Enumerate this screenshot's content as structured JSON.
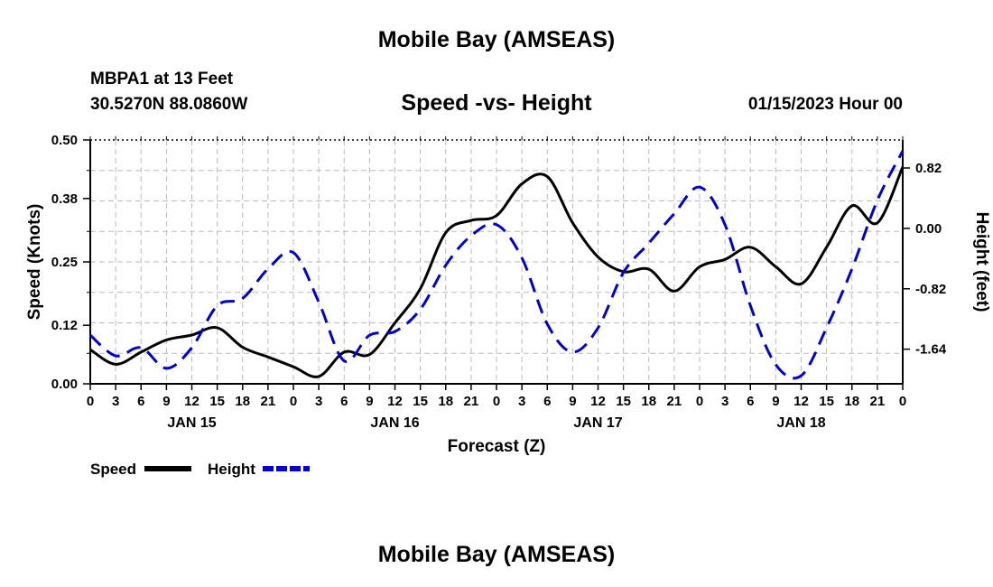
{
  "titles": {
    "main": "Mobile Bay (AMSEAS)",
    "station": "MBPA1 at 13 Feet",
    "coords": "30.5270N  88.0860W",
    "subtitle": "Speed -vs- Height",
    "datetime": "01/15/2023 Hour 00",
    "bottom": "Mobile Bay (AMSEAS)"
  },
  "chart_data": {
    "type": "line",
    "title": "Speed -vs- Height",
    "xlabel": "Forecast (Z)",
    "ylabel": "Speed (Knots)",
    "y2label": "Height (feet)",
    "x_hours_range": [
      0,
      96
    ],
    "ylim": [
      0,
      0.5
    ],
    "y2lim": [
      -2.11,
      1.2
    ],
    "y_ticks": [
      "0.00",
      "0.12",
      "0.25",
      "0.38",
      "0.50"
    ],
    "y2_ticks": [
      "-1.64",
      "-0.82",
      "0.00",
      "0.82"
    ],
    "x_tick_labels": [
      "0",
      "3",
      "6",
      "9",
      "12",
      "15",
      "18",
      "21",
      "0",
      "3",
      "6",
      "9",
      "12",
      "15",
      "18",
      "21",
      "0",
      "3",
      "6",
      "9",
      "12",
      "15",
      "18",
      "21",
      "0",
      "3",
      "6",
      "9",
      "12",
      "15",
      "18",
      "21",
      "0"
    ],
    "day_labels": [
      "JAN 15",
      "JAN 16",
      "JAN 17",
      "JAN 18"
    ],
    "legend": [
      {
        "name": "Speed",
        "color": "#000000",
        "dash": false
      },
      {
        "name": "Height",
        "color": "#0000cc",
        "dash": true
      }
    ],
    "series": [
      {
        "name": "Speed",
        "axis": "left",
        "color": "#000000",
        "x": [
          0,
          3,
          6,
          9,
          12,
          15,
          18,
          21,
          24,
          27,
          30,
          33,
          36,
          39,
          42,
          45,
          48,
          51,
          54,
          57,
          60,
          63,
          66,
          69,
          72,
          75,
          78,
          81,
          84,
          87,
          90,
          93,
          96
        ],
        "values": [
          0.07,
          0.04,
          0.065,
          0.09,
          0.1,
          0.115,
          0.075,
          0.055,
          0.035,
          0.015,
          0.065,
          0.06,
          0.125,
          0.195,
          0.31,
          0.335,
          0.345,
          0.41,
          0.425,
          0.33,
          0.26,
          0.23,
          0.235,
          0.19,
          0.24,
          0.255,
          0.28,
          0.24,
          0.205,
          0.28,
          0.365,
          0.33,
          0.445
        ]
      },
      {
        "name": "Height",
        "axis": "right",
        "color": "#0000cc",
        "x": [
          0,
          3,
          6,
          9,
          12,
          15,
          18,
          21,
          24,
          27,
          30,
          33,
          36,
          39,
          42,
          45,
          48,
          51,
          54,
          57,
          60,
          63,
          66,
          69,
          72,
          75,
          78,
          81,
          84,
          87,
          90,
          93,
          96
        ],
        "values": [
          -1.45,
          -1.73,
          -1.62,
          -1.9,
          -1.62,
          -1.05,
          -0.95,
          -0.55,
          -0.33,
          -1.0,
          -1.8,
          -1.45,
          -1.4,
          -1.1,
          -0.5,
          -0.1,
          0.05,
          -0.4,
          -1.3,
          -1.68,
          -1.35,
          -0.6,
          -0.2,
          0.2,
          0.56,
          0.05,
          -1.05,
          -1.85,
          -2.0,
          -1.35,
          -0.55,
          0.38,
          1.05
        ]
      }
    ]
  }
}
